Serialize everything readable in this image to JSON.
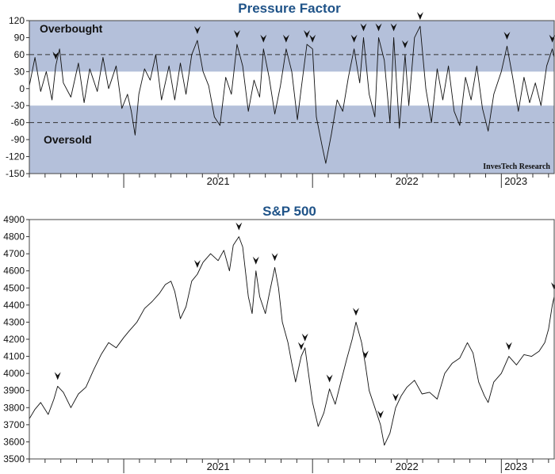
{
  "chart_data": [
    {
      "type": "line",
      "title": "Pressure Factor",
      "xlabel": "",
      "ylabel": "",
      "ylim": [
        -150,
        120
      ],
      "yticks": [
        120,
        90,
        60,
        30,
        0,
        -30,
        -60,
        -90,
        -120,
        -150
      ],
      "x_range": [
        2020.5,
        2023.28
      ],
      "year_ticks": [
        2021,
        2022,
        2023
      ],
      "year_labels": [
        "2021",
        "2022",
        "2023"
      ],
      "month_ticks": true,
      "bands": [
        {
          "name": "overbought-zone",
          "from": 30,
          "to": 120,
          "color": "#b4c0da"
        },
        {
          "name": "oversold-zone",
          "from": -150,
          "to": -30,
          "color": "#b4c0da"
        }
      ],
      "reference_lines": [
        60,
        -60
      ],
      "annotations": {
        "overbought": "Overbought",
        "oversold": "Oversold"
      },
      "source": "InvesTech Research",
      "series": [
        {
          "name": "Pressure Factor",
          "points": [
            [
              2020.5,
              5
            ],
            [
              2020.53,
              55
            ],
            [
              2020.56,
              -5
            ],
            [
              2020.59,
              30
            ],
            [
              2020.62,
              -20
            ],
            [
              2020.64,
              40
            ],
            [
              2020.66,
              70
            ],
            [
              2020.68,
              10
            ],
            [
              2020.72,
              -15
            ],
            [
              2020.76,
              45
            ],
            [
              2020.79,
              -25
            ],
            [
              2020.82,
              35
            ],
            [
              2020.86,
              -5
            ],
            [
              2020.89,
              55
            ],
            [
              2020.92,
              0
            ],
            [
              2020.96,
              40
            ],
            [
              2020.99,
              -35
            ],
            [
              2021.02,
              -10
            ],
            [
              2021.04,
              -40
            ],
            [
              2021.06,
              -82
            ],
            [
              2021.08,
              -10
            ],
            [
              2021.11,
              35
            ],
            [
              2021.14,
              15
            ],
            [
              2021.17,
              60
            ],
            [
              2021.2,
              -20
            ],
            [
              2021.24,
              40
            ],
            [
              2021.27,
              -20
            ],
            [
              2021.3,
              45
            ],
            [
              2021.33,
              -10
            ],
            [
              2021.36,
              60
            ],
            [
              2021.39,
              85
            ],
            [
              2021.42,
              30
            ],
            [
              2021.45,
              5
            ],
            [
              2021.48,
              -50
            ],
            [
              2021.51,
              -65
            ],
            [
              2021.54,
              20
            ],
            [
              2021.57,
              -10
            ],
            [
              2021.6,
              78
            ],
            [
              2021.63,
              40
            ],
            [
              2021.66,
              -40
            ],
            [
              2021.69,
              15
            ],
            [
              2021.72,
              -15
            ],
            [
              2021.74,
              70
            ],
            [
              2021.77,
              20
            ],
            [
              2021.8,
              -45
            ],
            [
              2021.83,
              5
            ],
            [
              2021.86,
              70
            ],
            [
              2021.89,
              30
            ],
            [
              2021.92,
              -55
            ],
            [
              2021.94,
              0
            ],
            [
              2021.97,
              78
            ],
            [
              2022.0,
              70
            ],
            [
              2022.02,
              -50
            ],
            [
              2022.05,
              -100
            ],
            [
              2022.07,
              -132
            ],
            [
              2022.1,
              -80
            ],
            [
              2022.13,
              -20
            ],
            [
              2022.16,
              -40
            ],
            [
              2022.19,
              20
            ],
            [
              2022.22,
              70
            ],
            [
              2022.25,
              10
            ],
            [
              2022.27,
              90
            ],
            [
              2022.3,
              -10
            ],
            [
              2022.33,
              -50
            ],
            [
              2022.35,
              90
            ],
            [
              2022.38,
              50
            ],
            [
              2022.41,
              -60
            ],
            [
              2022.43,
              90
            ],
            [
              2022.46,
              -70
            ],
            [
              2022.49,
              60
            ],
            [
              2022.51,
              -30
            ],
            [
              2022.54,
              90
            ],
            [
              2022.57,
              110
            ],
            [
              2022.6,
              0
            ],
            [
              2022.63,
              -60
            ],
            [
              2022.66,
              35
            ],
            [
              2022.69,
              -20
            ],
            [
              2022.72,
              40
            ],
            [
              2022.75,
              -40
            ],
            [
              2022.78,
              -65
            ],
            [
              2022.81,
              20
            ],
            [
              2022.84,
              -20
            ],
            [
              2022.87,
              40
            ],
            [
              2022.9,
              -35
            ],
            [
              2022.93,
              -75
            ],
            [
              2022.96,
              -10
            ],
            [
              2023.0,
              30
            ],
            [
              2023.03,
              75
            ],
            [
              2023.06,
              20
            ],
            [
              2023.09,
              -40
            ],
            [
              2023.12,
              20
            ],
            [
              2023.15,
              -25
            ],
            [
              2023.18,
              10
            ],
            [
              2023.21,
              -30
            ],
            [
              2023.24,
              40
            ],
            [
              2023.27,
              70
            ],
            [
              2023.28,
              55
            ]
          ]
        }
      ],
      "markers_x": [
        2020.64,
        2021.39,
        2021.6,
        2021.74,
        2021.86,
        2021.97,
        2022.0,
        2022.22,
        2022.27,
        2022.35,
        2022.43,
        2022.49,
        2022.57,
        2023.03,
        2023.27
      ]
    },
    {
      "type": "line",
      "title": "S&P 500",
      "xlabel": "",
      "ylabel": "",
      "ylim": [
        3500,
        4900
      ],
      "yticks": [
        4900,
        4800,
        4700,
        4600,
        4500,
        4400,
        4300,
        4200,
        4100,
        4000,
        3900,
        3800,
        3700,
        3600,
        3500
      ],
      "x_range": [
        2020.5,
        2023.28
      ],
      "year_ticks": [
        2021,
        2022,
        2023
      ],
      "year_labels": [
        "2021",
        "2022",
        "2023"
      ],
      "month_ticks": true,
      "series": [
        {
          "name": "S&P 500",
          "points": [
            [
              2020.5,
              3735
            ],
            [
              2020.53,
              3790
            ],
            [
              2020.56,
              3830
            ],
            [
              2020.6,
              3760
            ],
            [
              2020.63,
              3850
            ],
            [
              2020.65,
              3925
            ],
            [
              2020.68,
              3890
            ],
            [
              2020.72,
              3800
            ],
            [
              2020.76,
              3880
            ],
            [
              2020.8,
              3920
            ],
            [
              2020.84,
              4020
            ],
            [
              2020.88,
              4110
            ],
            [
              2020.92,
              4180
            ],
            [
              2020.96,
              4150
            ],
            [
              2021.0,
              4210
            ],
            [
              2021.03,
              4250
            ],
            [
              2021.07,
              4300
            ],
            [
              2021.11,
              4380
            ],
            [
              2021.15,
              4420
            ],
            [
              2021.19,
              4470
            ],
            [
              2021.22,
              4520
            ],
            [
              2021.25,
              4540
            ],
            [
              2021.27,
              4480
            ],
            [
              2021.3,
              4320
            ],
            [
              2021.33,
              4390
            ],
            [
              2021.36,
              4540
            ],
            [
              2021.39,
              4580
            ],
            [
              2021.42,
              4650
            ],
            [
              2021.46,
              4700
            ],
            [
              2021.5,
              4660
            ],
            [
              2021.53,
              4720
            ],
            [
              2021.56,
              4600
            ],
            [
              2021.58,
              4750
            ],
            [
              2021.61,
              4800
            ],
            [
              2021.63,
              4740
            ],
            [
              2021.66,
              4450
            ],
            [
              2021.68,
              4350
            ],
            [
              2021.7,
              4600
            ],
            [
              2021.72,
              4450
            ],
            [
              2021.75,
              4350
            ],
            [
              2021.77,
              4460
            ],
            [
              2021.8,
              4620
            ],
            [
              2021.82,
              4500
            ],
            [
              2021.84,
              4300
            ],
            [
              2021.87,
              4180
            ],
            [
              2021.89,
              4060
            ],
            [
              2021.91,
              3950
            ],
            [
              2021.94,
              4100
            ],
            [
              2021.96,
              4150
            ],
            [
              2021.98,
              3990
            ],
            [
              2022.0,
              3830
            ],
            [
              2022.03,
              3690
            ],
            [
              2022.06,
              3770
            ],
            [
              2022.09,
              3910
            ],
            [
              2022.12,
              3820
            ],
            [
              2022.15,
              3950
            ],
            [
              2022.18,
              4080
            ],
            [
              2022.21,
              4200
            ],
            [
              2022.23,
              4300
            ],
            [
              2022.26,
              4180
            ],
            [
              2022.28,
              4050
            ],
            [
              2022.3,
              3900
            ],
            [
              2022.33,
              3800
            ],
            [
              2022.36,
              3700
            ],
            [
              2022.38,
              3580
            ],
            [
              2022.41,
              3650
            ],
            [
              2022.44,
              3800
            ],
            [
              2022.47,
              3870
            ],
            [
              2022.5,
              3920
            ],
            [
              2022.54,
              3960
            ],
            [
              2022.58,
              3880
            ],
            [
              2022.62,
              3890
            ],
            [
              2022.66,
              3850
            ],
            [
              2022.7,
              4000
            ],
            [
              2022.74,
              4060
            ],
            [
              2022.78,
              4090
            ],
            [
              2022.82,
              4180
            ],
            [
              2022.85,
              4120
            ],
            [
              2022.88,
              3950
            ],
            [
              2022.91,
              3870
            ],
            [
              2022.93,
              3830
            ],
            [
              2022.96,
              3950
            ],
            [
              2023.0,
              4000
            ],
            [
              2023.04,
              4100
            ],
            [
              2023.08,
              4050
            ],
            [
              2023.12,
              4110
            ],
            [
              2023.16,
              4100
            ],
            [
              2023.2,
              4130
            ],
            [
              2023.23,
              4180
            ],
            [
              2023.25,
              4260
            ],
            [
              2023.27,
              4400
            ],
            [
              2023.28,
              4450
            ]
          ]
        }
      ],
      "markers_x": [
        2020.65,
        2021.39,
        2021.61,
        2021.7,
        2021.8,
        2021.94,
        2021.96,
        2022.09,
        2022.23,
        2022.28,
        2022.36,
        2022.44,
        2023.04,
        2023.28
      ]
    }
  ]
}
